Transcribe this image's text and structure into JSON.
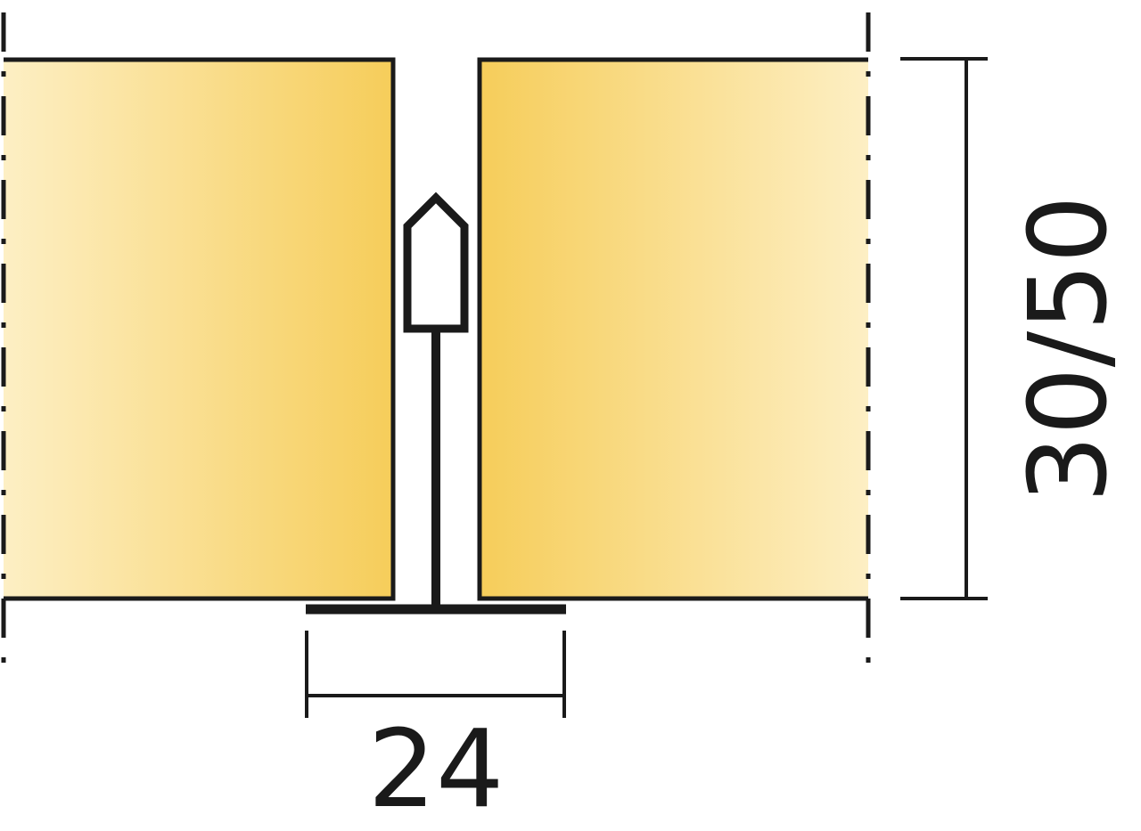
{
  "diagram": {
    "dimensions": {
      "width_label": "24",
      "height_label": "30/50"
    },
    "colors": {
      "outline": "#1a1a1a",
      "panel_light": "#fdefc0",
      "panel_dark": "#f6cd5a",
      "background": "#ffffff"
    }
  }
}
